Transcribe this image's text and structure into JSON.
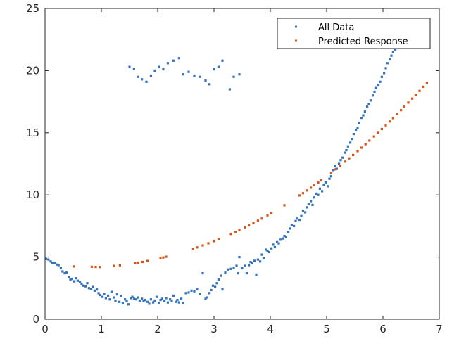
{
  "chart_data": {
    "type": "scatter",
    "title": "",
    "xlabel": "",
    "ylabel": "",
    "xlim": [
      0,
      7
    ],
    "ylim": [
      0,
      25
    ],
    "x_ticks": [
      "0",
      "1",
      "2",
      "3",
      "4",
      "5",
      "6",
      "7"
    ],
    "y_ticks": [
      "0",
      "5",
      "10",
      "15",
      "20",
      "25"
    ],
    "grid": false,
    "legend_position": "top-right",
    "series": [
      {
        "name": "All Data",
        "color": "#3472b9",
        "points": [
          [
            0.02,
            4.85
          ],
          [
            0.06,
            4.8
          ],
          [
            0.1,
            4.65
          ],
          [
            0.13,
            4.5
          ],
          [
            0.17,
            4.55
          ],
          [
            0.21,
            4.4
          ],
          [
            0.24,
            4.35
          ],
          [
            0.28,
            4.1
          ],
          [
            0.31,
            3.85
          ],
          [
            0.35,
            3.7
          ],
          [
            0.38,
            3.75
          ],
          [
            0.42,
            3.4
          ],
          [
            0.45,
            3.2
          ],
          [
            0.48,
            3.25
          ],
          [
            0.52,
            3.05
          ],
          [
            0.55,
            3.3
          ],
          [
            0.58,
            3.1
          ],
          [
            0.62,
            3.0
          ],
          [
            0.65,
            2.85
          ],
          [
            0.68,
            2.7
          ],
          [
            0.72,
            2.65
          ],
          [
            0.75,
            2.9
          ],
          [
            0.78,
            2.5
          ],
          [
            0.82,
            2.45
          ],
          [
            0.85,
            2.6
          ],
          [
            0.88,
            2.3
          ],
          [
            0.92,
            2.4
          ],
          [
            0.95,
            2.1
          ],
          [
            0.98,
            1.95
          ],
          [
            1.02,
            1.8
          ],
          [
            1.05,
            2.05
          ],
          [
            1.08,
            1.7
          ],
          [
            1.12,
            1.9
          ],
          [
            1.15,
            1.6
          ],
          [
            1.18,
            2.2
          ],
          [
            1.22,
            1.75
          ],
          [
            1.25,
            1.5
          ],
          [
            1.28,
            2.0
          ],
          [
            1.32,
            1.4
          ],
          [
            1.35,
            1.85
          ],
          [
            1.38,
            1.3
          ],
          [
            1.42,
            1.6
          ],
          [
            1.45,
            1.45
          ],
          [
            1.48,
            1.2
          ],
          [
            1.52,
            1.7
          ],
          [
            1.55,
            1.8
          ],
          [
            1.58,
            1.65
          ],
          [
            1.62,
            1.6
          ],
          [
            1.65,
            1.75
          ],
          [
            1.68,
            1.5
          ],
          [
            1.72,
            1.65
          ],
          [
            1.75,
            1.45
          ],
          [
            1.78,
            1.55
          ],
          [
            1.82,
            1.4
          ],
          [
            1.85,
            1.25
          ],
          [
            1.88,
            1.6
          ],
          [
            1.92,
            1.35
          ],
          [
            1.95,
            1.5
          ],
          [
            1.98,
            1.8
          ],
          [
            2.02,
            1.3
          ],
          [
            2.05,
            1.55
          ],
          [
            2.08,
            1.65
          ],
          [
            2.12,
            1.45
          ],
          [
            2.15,
            1.7
          ],
          [
            2.18,
            1.35
          ],
          [
            2.22,
            1.6
          ],
          [
            2.25,
            1.5
          ],
          [
            2.28,
            1.9
          ],
          [
            2.32,
            1.4
          ],
          [
            2.35,
            1.55
          ],
          [
            2.38,
            1.35
          ],
          [
            2.42,
            1.65
          ],
          [
            2.45,
            1.3
          ],
          [
            2.5,
            2.1
          ],
          [
            2.55,
            2.15
          ],
          [
            2.6,
            2.3
          ],
          [
            2.65,
            2.25
          ],
          [
            2.7,
            2.4
          ],
          [
            2.75,
            2.05
          ],
          [
            2.8,
            3.7
          ],
          [
            2.85,
            1.65
          ],
          [
            2.88,
            1.75
          ],
          [
            2.92,
            2.1
          ],
          [
            2.95,
            2.35
          ],
          [
            2.98,
            2.7
          ],
          [
            3.02,
            2.6
          ],
          [
            3.05,
            2.9
          ],
          [
            3.08,
            3.2
          ],
          [
            3.12,
            3.5
          ],
          [
            3.15,
            2.4
          ],
          [
            3.2,
            3.75
          ],
          [
            3.25,
            4.0
          ],
          [
            3.3,
            4.05
          ],
          [
            3.35,
            4.15
          ],
          [
            3.4,
            4.3
          ],
          [
            3.42,
            3.7
          ],
          [
            3.45,
            5.0
          ],
          [
            3.5,
            4.1
          ],
          [
            3.55,
            4.3
          ],
          [
            3.58,
            3.7
          ],
          [
            3.62,
            4.35
          ],
          [
            3.65,
            4.6
          ],
          [
            3.68,
            4.5
          ],
          [
            3.72,
            4.7
          ],
          [
            3.75,
            3.6
          ],
          [
            3.78,
            4.8
          ],
          [
            3.82,
            4.65
          ],
          [
            3.85,
            5.2
          ],
          [
            3.88,
            4.9
          ],
          [
            3.92,
            5.6
          ],
          [
            3.95,
            5.5
          ],
          [
            3.98,
            5.4
          ],
          [
            4.02,
            5.7
          ],
          [
            4.05,
            6.0
          ],
          [
            4.08,
            5.8
          ],
          [
            4.12,
            6.2
          ],
          [
            4.15,
            6.1
          ],
          [
            4.18,
            6.4
          ],
          [
            4.22,
            6.5
          ],
          [
            4.25,
            6.7
          ],
          [
            4.28,
            6.6
          ],
          [
            4.32,
            7.0
          ],
          [
            4.35,
            7.3
          ],
          [
            4.38,
            7.6
          ],
          [
            4.42,
            7.5
          ],
          [
            4.45,
            7.9
          ],
          [
            4.48,
            8.1
          ],
          [
            4.52,
            8.0
          ],
          [
            4.55,
            8.3
          ],
          [
            4.58,
            8.7
          ],
          [
            4.62,
            8.6
          ],
          [
            4.65,
            9.0
          ],
          [
            4.68,
            9.3
          ],
          [
            4.72,
            9.5
          ],
          [
            4.75,
            9.2
          ],
          [
            4.78,
            9.8
          ],
          [
            4.82,
            10.1
          ],
          [
            4.85,
            10.0
          ],
          [
            4.88,
            10.5
          ],
          [
            4.92,
            10.3
          ],
          [
            4.95,
            10.8
          ],
          [
            4.98,
            11.0
          ],
          [
            5.02,
            10.7
          ],
          [
            5.05,
            11.3
          ],
          [
            5.08,
            11.5
          ],
          [
            5.12,
            12.0
          ],
          [
            5.15,
            12.3
          ],
          [
            5.18,
            12.1
          ],
          [
            5.22,
            12.5
          ],
          [
            5.25,
            12.8
          ],
          [
            5.28,
            13.0
          ],
          [
            5.32,
            13.4
          ],
          [
            5.35,
            13.6
          ],
          [
            5.38,
            13.9
          ],
          [
            5.42,
            14.2
          ],
          [
            5.45,
            14.5
          ],
          [
            5.48,
            14.9
          ],
          [
            5.52,
            15.2
          ],
          [
            5.55,
            15.4
          ],
          [
            5.58,
            15.8
          ],
          [
            5.62,
            16.2
          ],
          [
            5.65,
            16.4
          ],
          [
            5.68,
            16.7
          ],
          [
            5.72,
            17.1
          ],
          [
            5.75,
            17.3
          ],
          [
            5.78,
            17.6
          ],
          [
            5.82,
            18.0
          ],
          [
            5.85,
            18.3
          ],
          [
            5.88,
            18.6
          ],
          [
            5.92,
            18.8
          ],
          [
            5.95,
            19.1
          ],
          [
            5.98,
            19.5
          ],
          [
            6.02,
            19.8
          ],
          [
            6.05,
            20.2
          ],
          [
            6.08,
            20.6
          ],
          [
            6.12,
            20.9
          ],
          [
            6.15,
            21.2
          ],
          [
            6.18,
            21.5
          ],
          [
            6.22,
            21.7
          ],
          [
            6.25,
            21.9
          ],
          [
            1.5,
            20.3
          ],
          [
            1.58,
            20.15
          ],
          [
            1.65,
            19.5
          ],
          [
            1.72,
            19.3
          ],
          [
            1.8,
            19.1
          ],
          [
            1.88,
            19.6
          ],
          [
            1.95,
            20.0
          ],
          [
            2.02,
            20.3
          ],
          [
            2.1,
            20.1
          ],
          [
            2.18,
            20.6
          ],
          [
            2.28,
            20.8
          ],
          [
            2.38,
            21.0
          ],
          [
            2.45,
            19.7
          ],
          [
            2.55,
            19.9
          ],
          [
            2.65,
            19.6
          ],
          [
            2.75,
            19.5
          ],
          [
            2.85,
            19.2
          ],
          [
            2.92,
            18.9
          ],
          [
            3.0,
            20.1
          ],
          [
            3.08,
            20.3
          ],
          [
            3.15,
            20.8
          ],
          [
            3.28,
            18.5
          ],
          [
            3.35,
            19.5
          ],
          [
            3.45,
            19.7
          ]
        ]
      },
      {
        "name": "Predicted Response",
        "color": "#d95319",
        "points": [
          [
            0.51,
            4.25
          ],
          [
            0.83,
            4.22
          ],
          [
            0.9,
            4.21
          ],
          [
            0.97,
            4.2
          ],
          [
            1.23,
            4.29
          ],
          [
            1.33,
            4.34
          ],
          [
            1.6,
            4.51
          ],
          [
            1.65,
            4.55
          ],
          [
            1.73,
            4.61
          ],
          [
            1.82,
            4.69
          ],
          [
            2.05,
            4.91
          ],
          [
            2.1,
            4.97
          ],
          [
            2.15,
            5.03
          ],
          [
            2.63,
            5.67
          ],
          [
            2.7,
            5.78
          ],
          [
            2.8,
            5.94
          ],
          [
            2.9,
            6.11
          ],
          [
            3.0,
            6.28
          ],
          [
            3.08,
            6.43
          ],
          [
            3.3,
            6.86
          ],
          [
            3.38,
            7.02
          ],
          [
            3.45,
            7.17
          ],
          [
            3.55,
            7.39
          ],
          [
            3.62,
            7.55
          ],
          [
            3.7,
            7.74
          ],
          [
            3.78,
            7.93
          ],
          [
            3.85,
            8.1
          ],
          [
            3.95,
            8.36
          ],
          [
            4.02,
            8.54
          ],
          [
            4.25,
            9.17
          ],
          [
            4.52,
            9.96
          ],
          [
            4.58,
            10.14
          ],
          [
            4.65,
            10.36
          ],
          [
            4.72,
            10.58
          ],
          [
            4.78,
            10.78
          ],
          [
            4.85,
            11.0
          ],
          [
            4.9,
            11.17
          ],
          [
            5.08,
            11.78
          ],
          [
            5.16,
            12.06
          ],
          [
            5.24,
            12.35
          ],
          [
            5.33,
            12.68
          ],
          [
            5.4,
            12.94
          ],
          [
            5.47,
            13.21
          ],
          [
            5.55,
            13.52
          ],
          [
            5.62,
            13.8
          ],
          [
            5.69,
            14.08
          ],
          [
            5.76,
            14.37
          ],
          [
            5.84,
            14.7
          ],
          [
            5.91,
            15.0
          ],
          [
            5.98,
            15.3
          ],
          [
            6.05,
            15.6
          ],
          [
            6.12,
            15.91
          ],
          [
            6.18,
            16.18
          ],
          [
            6.25,
            16.5
          ],
          [
            6.32,
            16.82
          ],
          [
            6.38,
            17.1
          ],
          [
            6.45,
            17.43
          ],
          [
            6.52,
            17.75
          ],
          [
            6.58,
            18.04
          ],
          [
            6.65,
            18.37
          ],
          [
            6.72,
            18.7
          ],
          [
            6.78,
            19.0
          ]
        ]
      }
    ]
  }
}
